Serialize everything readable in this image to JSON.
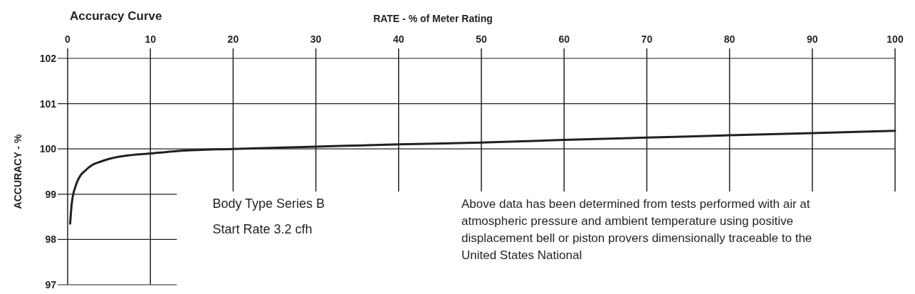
{
  "chart_data": {
    "type": "line",
    "title": "Accuracy Curve",
    "xlabel": "RATE - % of Meter Rating",
    "ylabel": "ACCURACY - %",
    "x": [
      0.3,
      0.5,
      1,
      1.5,
      2,
      3,
      4,
      5,
      7,
      10,
      13,
      20,
      30,
      40,
      50,
      60,
      70,
      80,
      90,
      100
    ],
    "series": [
      {
        "color": "#231f20",
        "values": [
          98.35,
          98.8,
          99.2,
          99.4,
          99.5,
          99.65,
          99.72,
          99.78,
          99.85,
          99.9,
          99.95,
          100.0,
          100.05,
          100.1,
          100.14,
          100.2,
          100.25,
          100.3,
          100.35,
          100.4
        ]
      }
    ],
    "xlim": [
      0,
      100
    ],
    "xticks": [
      0,
      10,
      20,
      30,
      40,
      50,
      60,
      70,
      80,
      90,
      100
    ],
    "ylim": [
      97,
      102
    ],
    "yticks": [
      97,
      98,
      99,
      100,
      101,
      102
    ],
    "grid": true,
    "marker": "none",
    "line_style": "solid",
    "annotations": [
      "Body Type Series B",
      "Start Rate 3.2 cfh",
      "Above data has been determined from tests performed with air at atmospheric pressure and ambient temperature using positive displacement bell or piston provers dimensionally traceable to the United States National"
    ]
  }
}
